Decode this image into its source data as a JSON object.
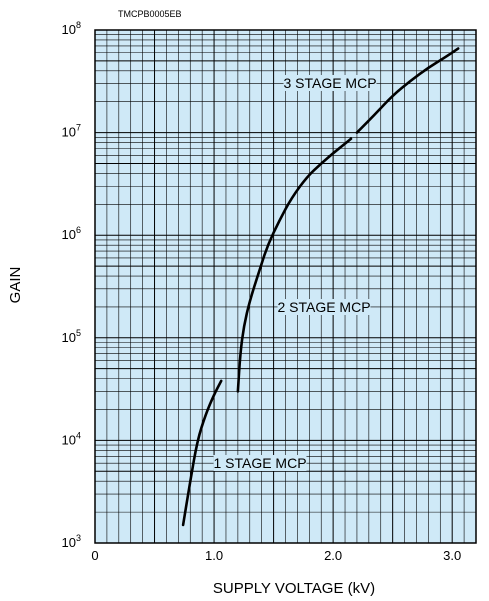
{
  "figure_code": "TMCPB0005EB",
  "chart_data": {
    "type": "line",
    "xlabel": "SUPPLY VOLTAGE (kV)",
    "ylabel": "GAIN",
    "xlim": [
      0,
      3.2
    ],
    "ylim": [
      1000,
      100000000
    ],
    "yscale": "log",
    "grid": true,
    "background_color": "#cfe9f7",
    "grid_color": "#000000",
    "line_color": "#000000",
    "x_ticks": [
      {
        "value": 0,
        "label": "0"
      },
      {
        "value": 1.0,
        "label": "1.0"
      },
      {
        "value": 2.0,
        "label": "2.0"
      },
      {
        "value": 3.0,
        "label": "3.0"
      }
    ],
    "y_ticks": [
      {
        "value": 1000,
        "base": "10",
        "exp": "3"
      },
      {
        "value": 10000,
        "base": "10",
        "exp": "4"
      },
      {
        "value": 100000,
        "base": "10",
        "exp": "5"
      },
      {
        "value": 1000000,
        "base": "10",
        "exp": "6"
      },
      {
        "value": 10000000,
        "base": "10",
        "exp": "7"
      },
      {
        "value": 100000000,
        "base": "10",
        "exp": "8"
      }
    ],
    "series": [
      {
        "name": "1 STAGE MCP",
        "points": [
          [
            0.74,
            1500
          ],
          [
            0.8,
            4000
          ],
          [
            0.86,
            10000
          ],
          [
            0.93,
            18000
          ],
          [
            1.0,
            28000
          ],
          [
            1.06,
            38000
          ]
        ]
      },
      {
        "name": "2 STAGE MCP",
        "points": [
          [
            1.2,
            30000
          ],
          [
            1.22,
            70000
          ],
          [
            1.25,
            130000
          ],
          [
            1.3,
            230000
          ],
          [
            1.38,
            450000
          ],
          [
            1.45,
            800000
          ],
          [
            1.55,
            1400000
          ],
          [
            1.65,
            2300000
          ],
          [
            1.78,
            3700000
          ],
          [
            1.9,
            5000000
          ],
          [
            2.0,
            6300000
          ],
          [
            2.1,
            7800000
          ],
          [
            2.15,
            8700000
          ]
        ]
      },
      {
        "name": "3 STAGE MCP",
        "points": [
          [
            2.2,
            10000000
          ],
          [
            2.35,
            15000000
          ],
          [
            2.5,
            23000000
          ],
          [
            2.65,
            32000000
          ],
          [
            2.8,
            43000000
          ],
          [
            2.95,
            55000000
          ],
          [
            3.05,
            66000000
          ]
        ]
      }
    ],
    "annotations": [
      {
        "text": "1 STAGE MCP",
        "series": 0
      },
      {
        "text": "2 STAGE MCP",
        "series": 1
      },
      {
        "text": "3 STAGE MCP",
        "series": 2
      }
    ]
  }
}
